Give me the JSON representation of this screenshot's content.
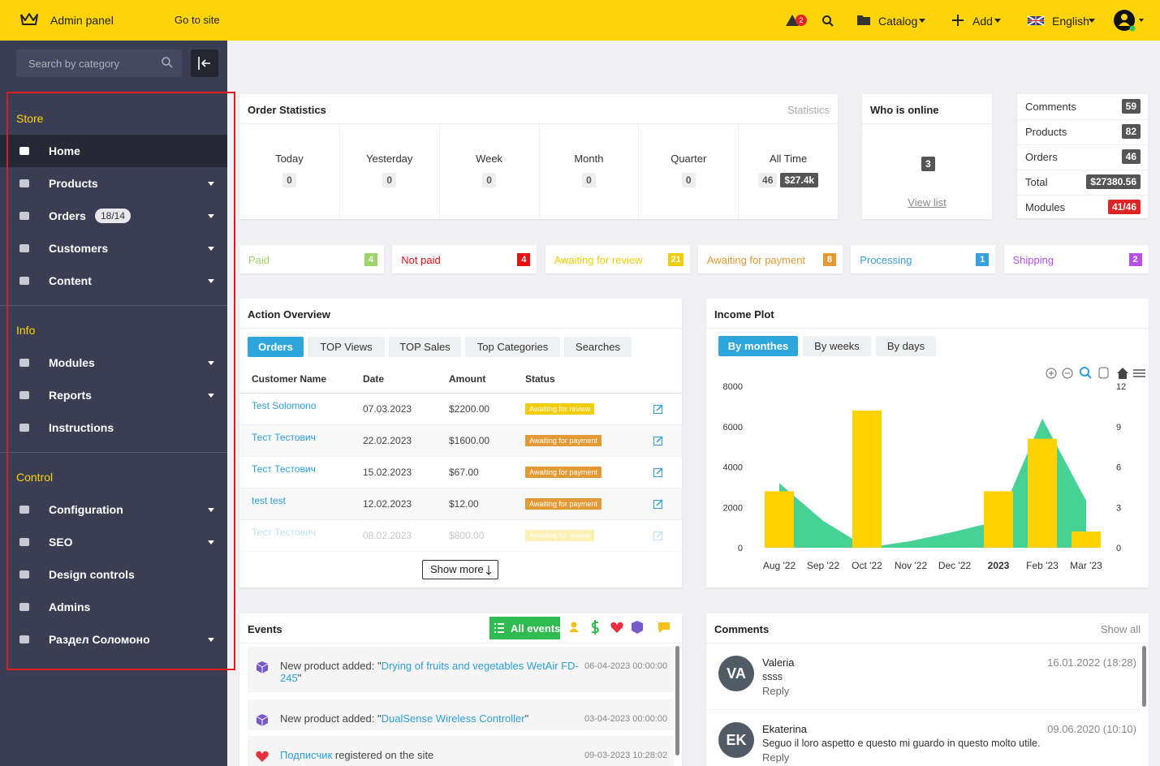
{
  "header": {
    "brand": "Admin panel",
    "go_to_site": "Go to site",
    "alerts": "2",
    "catalog": "Catalog",
    "add": "Add",
    "language": "English"
  },
  "sidebar": {
    "search_placeholder": "Search by category",
    "sections": [
      {
        "title": "Store",
        "items": [
          {
            "label": "Home",
            "active": true
          },
          {
            "label": "Products",
            "dropdown": true
          },
          {
            "label": "Orders",
            "badge": "18/14",
            "dropdown": true
          },
          {
            "label": "Customers",
            "dropdown": true
          },
          {
            "label": "Content",
            "dropdown": true
          }
        ]
      },
      {
        "title": "Info",
        "items": [
          {
            "label": "Modules",
            "dropdown": true
          },
          {
            "label": "Reports",
            "dropdown": true
          },
          {
            "label": "Instructions"
          }
        ]
      },
      {
        "title": "Control",
        "items": [
          {
            "label": "Configuration",
            "dropdown": true
          },
          {
            "label": "SEO",
            "dropdown": true
          },
          {
            "label": "Design controls"
          },
          {
            "label": "Admins"
          },
          {
            "label": "Раздел Соломоно",
            "dropdown": true
          }
        ]
      }
    ]
  },
  "order_statistics": {
    "title": "Order Statistics",
    "link": "Statistics",
    "periods": [
      {
        "label": "Today",
        "values": [
          0
        ]
      },
      {
        "label": "Yesterday",
        "values": [
          0
        ]
      },
      {
        "label": "Week",
        "values": [
          0
        ]
      },
      {
        "label": "Month",
        "values": [
          0
        ]
      },
      {
        "label": "Quarter",
        "values": [
          0
        ]
      },
      {
        "label": "All Time",
        "values": [
          46,
          "$27.4k"
        ]
      }
    ]
  },
  "who_is_online": {
    "title": "Who is online",
    "count": 3,
    "link": "View list"
  },
  "counters": [
    {
      "label": "Comments",
      "value": 59,
      "color": "#555555"
    },
    {
      "label": "Products",
      "value": 82,
      "color": "#555555"
    },
    {
      "label": "Orders",
      "value": 46,
      "color": "#555555"
    },
    {
      "label": "Total",
      "value": "$27380.56",
      "color": "#555555"
    },
    {
      "label": "Modules",
      "value": "41/46",
      "color": "#e02424"
    }
  ],
  "order_statuses": [
    {
      "label": "Paid",
      "count": 4,
      "color": "#9fd46a"
    },
    {
      "label": "Not paid",
      "count": 4,
      "color": "#e81010"
    },
    {
      "label": "Awaiting for review",
      "count": 21,
      "color": "#f2cc05"
    },
    {
      "label": "Awaiting for payment",
      "count": 8,
      "color": "#e39a35"
    },
    {
      "label": "Processing",
      "count": 1,
      "color": "#3a9fdd"
    },
    {
      "label": "Shipping",
      "count": 2,
      "color": "#b650e8"
    }
  ],
  "action_overview": {
    "title": "Action Overview",
    "tabs": [
      "Orders",
      "TOP Views",
      "TOP Sales",
      "Top Categories",
      "Searches"
    ],
    "columns": [
      "Customer Name",
      "Date",
      "Amount",
      "Status"
    ],
    "rows": [
      [
        "Test Solomono",
        "07.03.2023",
        "$2200.00",
        "Awaiting for review"
      ],
      [
        "Тест Тестович",
        "22.02.2023",
        "$1600.00",
        "Awaiting for payment"
      ],
      [
        "Тест Тестович",
        "15.02.2023",
        "$67.00",
        "Awaiting for payment"
      ],
      [
        "test test",
        "12.02.2023",
        "$12.00",
        "Awaiting for payment"
      ],
      [
        "Тест Тестович",
        "08.02.2023",
        "$800.00",
        "Awaiting for review"
      ]
    ],
    "show_more": "Show more"
  },
  "income_plot": {
    "title": "Income Plot",
    "tabs": [
      "By monthes",
      "By weeks",
      "By days"
    ],
    "type": "bar",
    "categories": [
      "Aug '22",
      "Sep '22",
      "Oct '22",
      "Nov '22",
      "Dec '22",
      "2023",
      "Feb '23",
      "Mar '23"
    ],
    "series": [
      {
        "type": "bar",
        "color": "#ffd200",
        "values": [
          2800,
          0,
          6800,
          0,
          0,
          2800,
          5400,
          800
        ]
      },
      {
        "type": "area",
        "axis": "y2",
        "color": "#3ecf8e",
        "values": [
          4.8,
          2,
          0,
          0.5,
          1.2,
          2,
          9.6,
          3.5
        ]
      }
    ],
    "ylim": [
      0,
      8000
    ],
    "yticks": [
      0,
      2000,
      4000,
      6000,
      8000
    ],
    "y2lim": [
      0,
      12
    ],
    "y2ticks": [
      0,
      3,
      6,
      9,
      12
    ]
  },
  "events": {
    "title": "Events",
    "all_events": "All events",
    "items": [
      {
        "icon": "cube",
        "prefix": "New product added: \"",
        "link": "Drying of fruits and vegetables WetAir FD-245",
        "suffix": "\"",
        "date": "06-04-2023",
        "time": "00:00:00"
      },
      {
        "icon": "cube",
        "prefix": "New product added: \"",
        "link": "DualSense Wireless Controller",
        "suffix": "\"",
        "date": "03-04-2023",
        "time": "00:00:00"
      },
      {
        "icon": "heart",
        "link": "Подписчик",
        "suffix": " registered on the site",
        "date": "09-03-2023",
        "time": "10:28:02"
      }
    ]
  },
  "comments": {
    "title": "Comments",
    "link": "Show all",
    "items": [
      {
        "initials": "VA",
        "name": "Valeria",
        "text": "ssss",
        "reply": "Reply",
        "date": "16.01.2022 (18:28)"
      },
      {
        "initials": "EK",
        "name": "Ekaterina",
        "text": "Seguo il loro aspetto e questo mi guardo in questo molto utile.",
        "reply": "Reply",
        "date": "09.06.2020 (10:10)"
      }
    ]
  }
}
